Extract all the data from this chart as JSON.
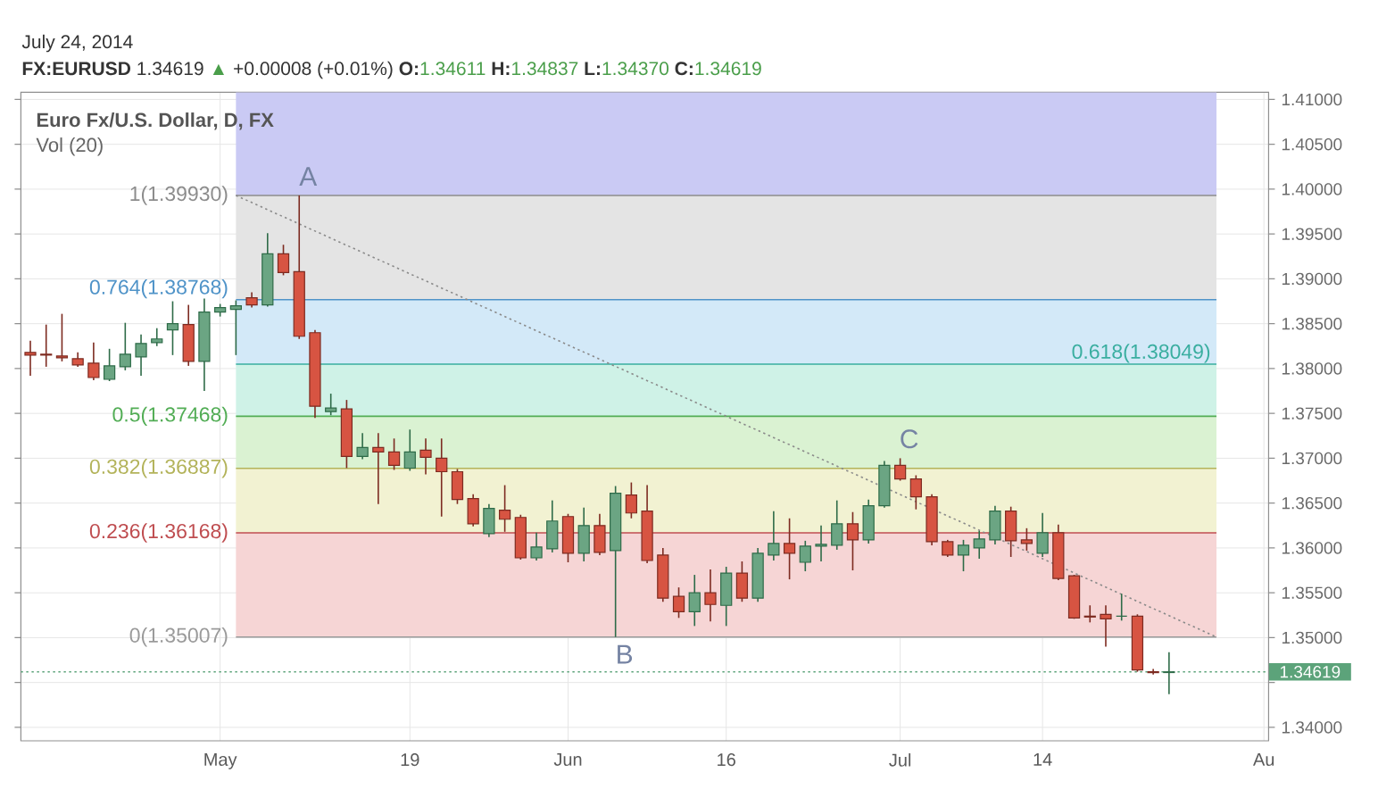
{
  "chart_data": {
    "type": "candlestick",
    "title": "Euro Fx/U.S. Dollar, D, FX",
    "annotations": [
      "July 24, 2014",
      "FX:EURUSD",
      "1.34619",
      "▲",
      "+0.00008 (+0.01%)",
      "O:",
      "1.34611",
      "H:",
      "1.34837",
      "L:",
      "1.34370",
      "C:",
      "1.34619",
      "Vol (20)",
      {
        "text": "A",
        "y": 1.3993
      },
      {
        "text": "B",
        "y": 1.35007
      },
      {
        "text": "C",
        "y": 1.37
      }
    ],
    "categories": [
      null,
      null,
      null,
      null,
      null,
      null,
      null,
      null,
      null,
      null,
      null,
      null,
      "May",
      null,
      null,
      null,
      null,
      null,
      null,
      null,
      null,
      null,
      null,
      null,
      "19",
      null,
      null,
      null,
      null,
      null,
      null,
      null,
      null,
      null,
      "Jun",
      null,
      null,
      null,
      null,
      null,
      null,
      null,
      null,
      null,
      "16",
      null,
      null,
      null,
      null,
      null,
      null,
      null,
      null,
      null,
      null,
      "Jul",
      null,
      null,
      null,
      null,
      null,
      null,
      null,
      null,
      "14",
      null,
      null,
      null,
      null,
      null,
      null,
      null,
      null,
      null,
      null,
      null,
      null,
      null,
      "Au"
    ],
    "ohlc": [
      [
        1.3818,
        1.3831,
        1.3792,
        1.3815
      ],
      [
        1.3816,
        1.3849,
        1.3802,
        1.3815
      ],
      [
        1.3814,
        1.3861,
        1.3808,
        1.3812
      ],
      [
        1.3811,
        1.3818,
        1.3802,
        1.3804
      ],
      [
        1.3806,
        1.3829,
        1.3787,
        1.379
      ],
      [
        1.3788,
        1.3822,
        1.3786,
        1.3803
      ],
      [
        1.3802,
        1.3851,
        1.3798,
        1.3816
      ],
      [
        1.3813,
        1.3838,
        1.3792,
        1.3828
      ],
      [
        1.3829,
        1.3845,
        1.3825,
        1.3833
      ],
      [
        1.3843,
        1.3875,
        1.3815,
        1.385
      ],
      [
        1.3849,
        1.3871,
        1.3803,
        1.3808
      ],
      [
        1.3808,
        1.3878,
        1.3775,
        1.3863
      ],
      [
        1.3863,
        1.3872,
        1.3858,
        1.3868
      ],
      [
        1.3866,
        1.3876,
        1.3815,
        1.387
      ],
      [
        1.3879,
        1.3885,
        1.3868,
        1.3871
      ],
      [
        1.3871,
        1.3951,
        1.3869,
        1.3928
      ],
      [
        1.3928,
        1.3938,
        1.3904,
        1.3907
      ],
      [
        1.3908,
        1.3993,
        1.3833,
        1.3836
      ],
      [
        1.384,
        1.3843,
        1.3745,
        1.3758
      ],
      [
        1.3752,
        1.3772,
        1.3748,
        1.3756
      ],
      [
        1.3755,
        1.3765,
        1.3689,
        1.3702
      ],
      [
        1.3702,
        1.3728,
        1.3699,
        1.3712
      ],
      [
        1.3712,
        1.3728,
        1.3649,
        1.3707
      ],
      [
        1.3707,
        1.3722,
        1.3687,
        1.3692
      ],
      [
        1.3689,
        1.3732,
        1.3686,
        1.3707
      ],
      [
        1.3709,
        1.3722,
        1.3682,
        1.3701
      ],
      [
        1.37,
        1.3722,
        1.3635,
        1.3685
      ],
      [
        1.3685,
        1.3688,
        1.3649,
        1.3654
      ],
      [
        1.3655,
        1.366,
        1.3624,
        1.3627
      ],
      [
        1.3616,
        1.3649,
        1.3612,
        1.3644
      ],
      [
        1.3642,
        1.367,
        1.3618,
        1.3632
      ],
      [
        1.3634,
        1.3637,
        1.3587,
        1.3589
      ],
      [
        1.3589,
        1.3617,
        1.3586,
        1.3601
      ],
      [
        1.3599,
        1.3653,
        1.3595,
        1.363
      ],
      [
        1.3635,
        1.3638,
        1.3584,
        1.3594
      ],
      [
        1.3594,
        1.3645,
        1.3585,
        1.3625
      ],
      [
        1.3625,
        1.3638,
        1.3592,
        1.3595
      ],
      [
        1.3597,
        1.3669,
        1.35007,
        1.3661
      ],
      [
        1.3659,
        1.3673,
        1.3633,
        1.3639
      ],
      [
        1.3641,
        1.367,
        1.3583,
        1.3586
      ],
      [
        1.3592,
        1.36,
        1.354,
        1.3544
      ],
      [
        1.3546,
        1.3556,
        1.3522,
        1.3529
      ],
      [
        1.3529,
        1.357,
        1.3513,
        1.355
      ],
      [
        1.355,
        1.3576,
        1.3518,
        1.3537
      ],
      [
        1.3536,
        1.3579,
        1.3513,
        1.3572
      ],
      [
        1.3572,
        1.3585,
        1.354,
        1.3544
      ],
      [
        1.3544,
        1.36,
        1.354,
        1.3594
      ],
      [
        1.3592,
        1.3641,
        1.3586,
        1.3605
      ],
      [
        1.3605,
        1.3633,
        1.3565,
        1.3594
      ],
      [
        1.3584,
        1.3608,
        1.3574,
        1.3602
      ],
      [
        1.3602,
        1.3625,
        1.3585,
        1.3604
      ],
      [
        1.3603,
        1.3653,
        1.3598,
        1.3627
      ],
      [
        1.3627,
        1.364,
        1.3575,
        1.3609
      ],
      [
        1.3609,
        1.3654,
        1.3605,
        1.3647
      ],
      [
        1.3647,
        1.3697,
        1.3645,
        1.3692
      ],
      [
        1.3692,
        1.37,
        1.3675,
        1.3677
      ],
      [
        1.3677,
        1.3681,
        1.3643,
        1.3657
      ],
      [
        1.3657,
        1.366,
        1.3603,
        1.3607
      ],
      [
        1.3607,
        1.3609,
        1.359,
        1.3592
      ],
      [
        1.3592,
        1.3609,
        1.3574,
        1.3603
      ],
      [
        1.36,
        1.3619,
        1.3588,
        1.361
      ],
      [
        1.3609,
        1.3647,
        1.3604,
        1.3641
      ],
      [
        1.3641,
        1.3646,
        1.359,
        1.3608
      ],
      [
        1.3609,
        1.3622,
        1.3597,
        1.3605
      ],
      [
        1.3594,
        1.3639,
        1.359,
        1.3617
      ],
      [
        1.3617,
        1.3626,
        1.3564,
        1.3566
      ],
      [
        1.3569,
        1.357,
        1.3521,
        1.3522
      ],
      [
        1.3524,
        1.3536,
        1.3517,
        1.3523
      ],
      [
        1.3526,
        1.3536,
        1.349,
        1.3521
      ],
      [
        1.3524,
        1.3549,
        1.3519,
        1.3524
      ],
      [
        1.3524,
        1.3526,
        1.3462,
        1.3464
      ],
      [
        1.3462,
        1.3465,
        1.3459,
        1.3461
      ],
      [
        1.34611,
        1.34837,
        1.3437,
        1.34619
      ],
      null,
      null,
      null,
      null,
      null,
      null
    ],
    "series": [
      {
        "type": "line",
        "line_style": "dotted",
        "color": "#8a8a8a",
        "values": [
          null,
          null,
          null,
          null,
          null,
          null,
          null,
          null,
          null,
          null,
          null,
          null,
          null,
          1.3993,
          null,
          null,
          null,
          null,
          null,
          null,
          null,
          null,
          null,
          null,
          null,
          null,
          null,
          null,
          null,
          null,
          null,
          null,
          null,
          null,
          null,
          null,
          null,
          null,
          null,
          null,
          null,
          null,
          null,
          null,
          null,
          null,
          null,
          null,
          null,
          null,
          null,
          null,
          null,
          null,
          null,
          null,
          null,
          null,
          null,
          null,
          null,
          null,
          null,
          null,
          null,
          null,
          null,
          null,
          null,
          null,
          null,
          null,
          null,
          null,
          null,
          1.35007,
          null,
          null,
          null
        ]
      }
    ],
    "ylim": [
      1.3385,
      1.4108
    ],
    "yticks": [
      {
        "value": 1.34,
        "label": "1.34000"
      },
      {
        "value": 1.345,
        "label": null
      },
      {
        "value": 1.35,
        "label": "1.35000"
      },
      {
        "value": 1.355,
        "label": "1.35500"
      },
      {
        "value": 1.36,
        "label": "1.36000"
      },
      {
        "value": 1.365,
        "label": "1.36500"
      },
      {
        "value": 1.37,
        "label": "1.37000"
      },
      {
        "value": 1.375,
        "label": "1.37500"
      },
      {
        "value": 1.38,
        "label": "1.38000"
      },
      {
        "value": 1.385,
        "label": "1.38500"
      },
      {
        "value": 1.39,
        "label": "1.39000"
      },
      {
        "value": 1.395,
        "label": "1.39500"
      },
      {
        "value": 1.4,
        "label": "1.40000"
      },
      {
        "value": 1.405,
        "label": "1.40500"
      },
      {
        "value": 1.41,
        "label": "1.41000"
      }
    ],
    "grid": true,
    "ref_lines": [
      {
        "axis": "y",
        "value": 1.3993,
        "label": "1(1.39930)",
        "color": "#8c8c8c"
      },
      {
        "axis": "y",
        "value": 1.38768,
        "label": "0.764(1.38768)",
        "color": "#4f93c8"
      },
      {
        "axis": "y",
        "value": 1.38049,
        "label": "0.618(1.38049)",
        "color": "#3aaea0"
      },
      {
        "axis": "y",
        "value": 1.37468,
        "label": "0.5(1.37468)",
        "color": "#52ad55"
      },
      {
        "axis": "y",
        "value": 1.36887,
        "label": "0.382(1.36887)",
        "color": "#b3b35a"
      },
      {
        "axis": "y",
        "value": 1.36168,
        "label": "0.236(1.36168)",
        "color": "#bf4d50"
      },
      {
        "axis": "y",
        "value": 1.35007,
        "label": "0(1.35007)",
        "color": "#9a9a9a"
      },
      {
        "axis": "y",
        "value": 1.34619,
        "label": "1.34619",
        "color": "#5ca37a",
        "line_style": "dotted"
      }
    ],
    "bands": [
      {
        "axis": "y",
        "from": 1.3993,
        "to": 1.4108,
        "color": "#cacaf4"
      },
      {
        "axis": "y",
        "from": 1.38768,
        "to": 1.3993,
        "color": "#e4e4e4"
      },
      {
        "axis": "y",
        "from": 1.38049,
        "to": 1.38768,
        "color": "#d3e9f8"
      },
      {
        "axis": "y",
        "from": 1.37468,
        "to": 1.38049,
        "color": "#cff2e7"
      },
      {
        "axis": "y",
        "from": 1.36887,
        "to": 1.37468,
        "color": "#daf2d2"
      },
      {
        "axis": "y",
        "from": 1.36168,
        "to": 1.36887,
        "color": "#f2f2d2"
      },
      {
        "axis": "y",
        "from": 1.35007,
        "to": 1.36168,
        "color": "#f6d5d5"
      }
    ]
  }
}
